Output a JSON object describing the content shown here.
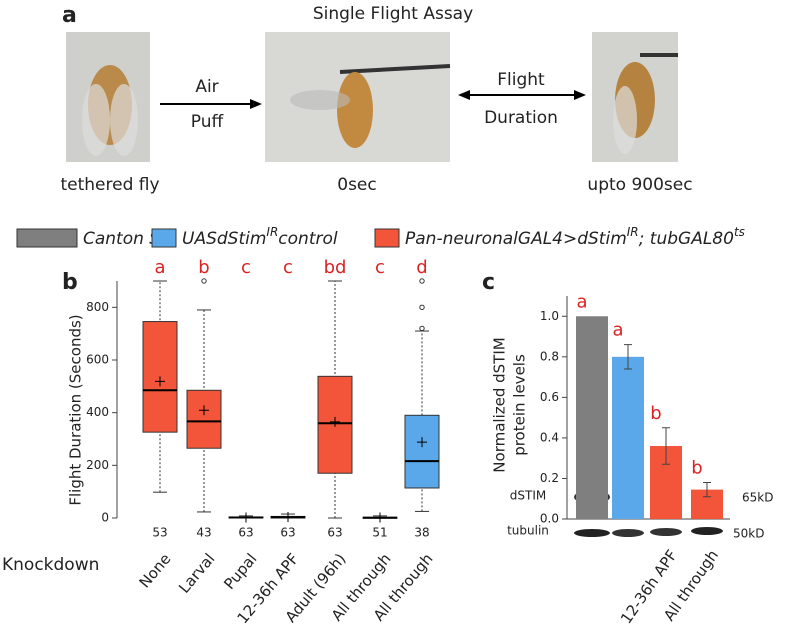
{
  "panel_labels": [
    "a",
    "b",
    "c"
  ],
  "assay": {
    "title": "Single Flight Assay",
    "arrow1": [
      "Air",
      "Puff"
    ],
    "arrow2": [
      "Flight",
      "Duration"
    ],
    "captions": [
      "tethered fly",
      "0sec",
      "upto 900sec"
    ]
  },
  "legend": [
    {
      "color": "#7f7f7f",
      "parts": [
        {
          "text": "Canton S"
        }
      ]
    },
    {
      "color": "#5aa8ea",
      "parts": [
        {
          "text": "UASdStim"
        },
        {
          "text": "IR",
          "sup": true
        },
        {
          "text": "control"
        }
      ]
    },
    {
      "color": "#f2553a",
      "parts": [
        {
          "text": "Pan-neuronalGAL4>dStim"
        },
        {
          "text": "IR",
          "sup": true
        },
        {
          "text": "; tubGAL80"
        },
        {
          "text": "ts",
          "sup": true
        }
      ]
    }
  ],
  "chart_data": [
    {
      "type": "box",
      "ylabel": "Flight Duration (Seconds)",
      "xlabel": "Knockdown",
      "categories": [
        "None",
        "Larval",
        "Pupal",
        "12-36h APF",
        "Adult (96h)",
        "All through",
        "All through"
      ],
      "colors": [
        "#f2553a",
        "#f2553a",
        "#f2553a",
        "#f2553a",
        "#f2553a",
        "#f2553a",
        "#5aa8ea"
      ],
      "min": [
        98,
        23,
        0,
        0,
        0,
        0,
        25
      ],
      "q1": [
        326,
        265,
        0,
        0,
        170,
        0,
        114
      ],
      "median": [
        485,
        367,
        2,
        3,
        360,
        1,
        216
      ],
      "q3": [
        746,
        485,
        4,
        6,
        538,
        3,
        390
      ],
      "max": [
        900,
        790,
        8,
        15,
        900,
        8,
        710
      ],
      "mean": [
        519,
        409,
        2,
        4,
        365,
        2,
        288
      ],
      "outliers": [
        [],
        [
          900
        ],
        [],
        [],
        [],
        [],
        [
          720,
          800,
          900
        ]
      ],
      "n": [
        53,
        43,
        63,
        63,
        63,
        51,
        38
      ],
      "letters": [
        "a",
        "b",
        "c",
        "c",
        "bd",
        "c",
        "d"
      ],
      "ylim": [
        0,
        900
      ],
      "yticks": [
        0,
        200,
        400,
        600,
        800
      ]
    },
    {
      "type": "bar",
      "ylabel": [
        "Normalized dSTIM",
        "protein levels"
      ],
      "categories": [
        null,
        null,
        "12-36h APF",
        "All through"
      ],
      "colors": [
        "#7f7f7f",
        "#5aa8ea",
        "#f2553a",
        "#f2553a"
      ],
      "values": [
        1.0,
        0.8,
        0.36,
        0.145
      ],
      "errors": [
        0,
        0.06,
        0.09,
        0.035
      ],
      "letters": [
        "a",
        "a",
        "b",
        "b"
      ],
      "ylim": [
        0,
        1.1
      ],
      "yticks": [
        {
          "value": 0,
          "label": "0.0"
        },
        {
          "value": 0.2,
          "label": "0.2"
        },
        {
          "value": 0.4,
          "label": "0.4"
        },
        {
          "value": 0.6,
          "label": "0.6"
        },
        {
          "value": 0.8,
          "label": "0.8"
        },
        {
          "value": 1,
          "label": "1.0"
        }
      ],
      "blot": {
        "rows": [
          "dSTIM",
          "tubulin"
        ],
        "sizes": [
          "65kD",
          "50kD"
        ]
      }
    }
  ]
}
